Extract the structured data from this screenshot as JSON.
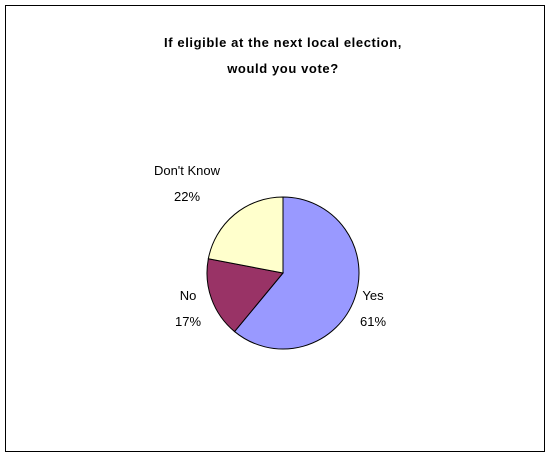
{
  "chart_data": {
    "type": "pie",
    "title_lines": [
      "If eligible at the next local election,",
      "would you vote?"
    ],
    "title": "If eligible at the next local election, would you vote?",
    "categories": [
      "Yes",
      "No",
      "Don't Know"
    ],
    "values": [
      61,
      17,
      22
    ],
    "value_labels": [
      "61%",
      "17%",
      "22%"
    ],
    "colors": [
      "#9999ff",
      "#993366",
      "#ffffcc"
    ],
    "start_angle_deg": 0,
    "direction": "clockwise",
    "legend": "none",
    "slice_border_color": "#000000"
  }
}
